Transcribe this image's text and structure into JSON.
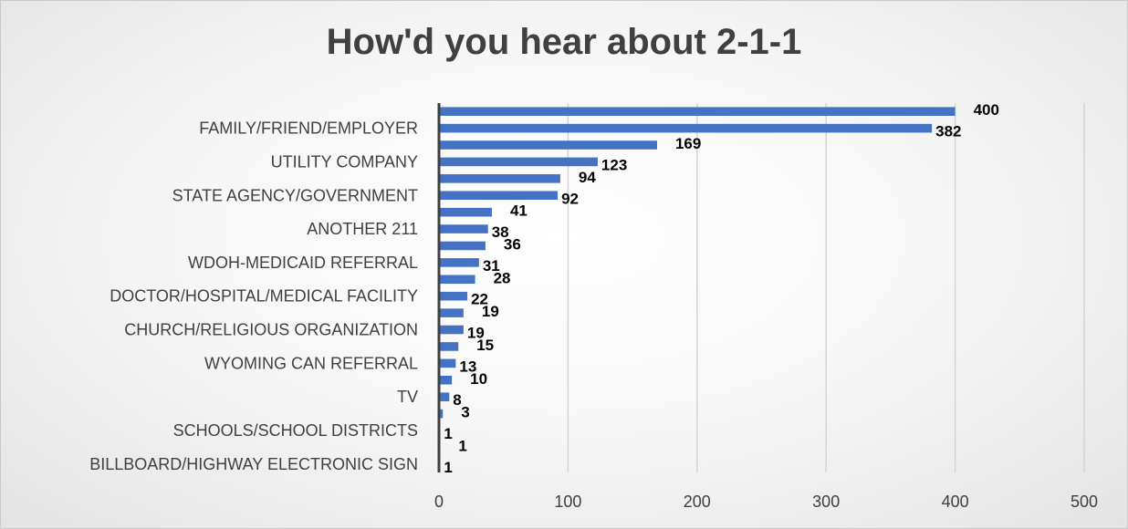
{
  "chart_data": {
    "type": "bar",
    "orientation": "horizontal",
    "title": "How'd you hear about 2-1-1",
    "xlabel": "",
    "ylabel": "",
    "xlim": [
      0,
      500
    ],
    "xticks": [
      0,
      100,
      200,
      300,
      400,
      500
    ],
    "grid": "vertical",
    "legend": "none",
    "bar_color": "#4472C4",
    "values": [
      400,
      382,
      169,
      123,
      94,
      92,
      41,
      38,
      36,
      31,
      28,
      22,
      19,
      19,
      15,
      13,
      10,
      8,
      3,
      1,
      1,
      1
    ],
    "category_labels": [
      {
        "index": 1,
        "label": "FAMILY/FRIEND/EMPLOYER"
      },
      {
        "index": 3,
        "label": "UTILITY COMPANY"
      },
      {
        "index": 5,
        "label": "STATE AGENCY/GOVERNMENT"
      },
      {
        "index": 7,
        "label": "ANOTHER 211"
      },
      {
        "index": 9,
        "label": "WDOH-MEDICAID REFERRAL"
      },
      {
        "index": 11,
        "label": "DOCTOR/HOSPITAL/MEDICAL FACILITY"
      },
      {
        "index": 13,
        "label": "CHURCH/RELIGIOUS ORGANIZATION"
      },
      {
        "index": 15,
        "label": "WYOMING CAN REFERRAL"
      },
      {
        "index": 17,
        "label": "TV"
      },
      {
        "index": 19,
        "label": "SCHOOLS/SCHOOL DISTRICTS"
      },
      {
        "index": 21,
        "label": "BILLBOARD/HIGHWAY ELECTRONIC SIGN"
      }
    ]
  }
}
